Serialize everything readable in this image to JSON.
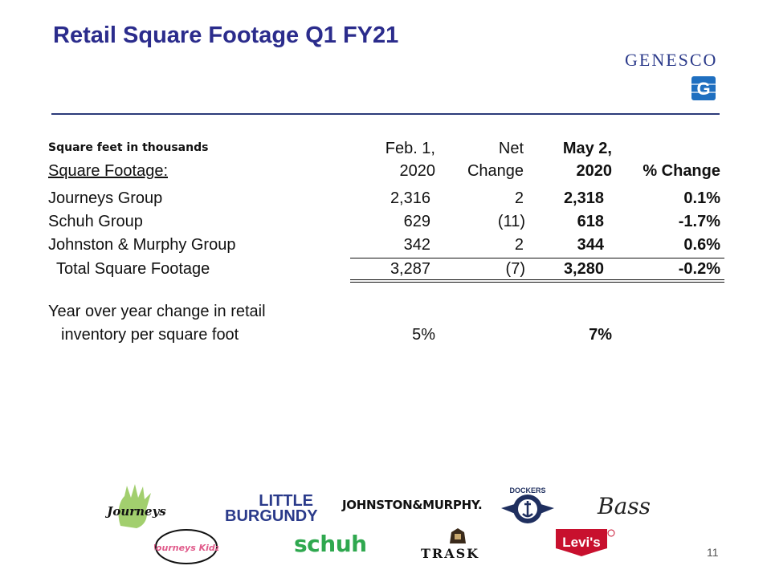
{
  "title": "Retail Square Footage Q1 FY21",
  "brand": {
    "name": "GENESCO",
    "mark": "G"
  },
  "note": "Square feet in thousands",
  "table": {
    "row_header_label": "Square Footage:",
    "columns": [
      {
        "line1": "Feb. 1,",
        "line2": "2020"
      },
      {
        "line1": "Net",
        "line2": "Change"
      },
      {
        "line1": "May 2,",
        "line2": "2020"
      },
      {
        "line1": "",
        "line2": "% Change"
      }
    ],
    "rows": [
      {
        "label": "Journeys Group",
        "feb": "2,316",
        "net": "2",
        "may": "2,318",
        "pct": "0.1%"
      },
      {
        "label": "Schuh Group",
        "feb": "629",
        "net": "(11)",
        "may": "618",
        "pct": "-1.7%"
      },
      {
        "label": "Johnston & Murphy Group",
        "feb": "342",
        "net": "2",
        "may": "344",
        "pct": "0.6%"
      },
      {
        "label": "Total Square Footage",
        "feb": "3,287",
        "net": "(7)",
        "may": "3,280",
        "pct": "-0.2%"
      }
    ],
    "yoy": {
      "label_line1": "Year over year change in retail",
      "label_line2": "inventory per square foot",
      "feb": "5%",
      "may": "7%"
    }
  },
  "logos": {
    "journeys": "Journeys",
    "journeys_kidz": "Journeys Kidz",
    "little_burgundy_1": "LITTLE",
    "little_burgundy_2": "BURGUNDY",
    "johnston_murphy": "JOHNSTON&MURPHY.",
    "dockers": "DOCKERS",
    "bass": "Bass",
    "schuh": "schuh",
    "trask": "TRASK",
    "levis": "Levi's"
  },
  "page_number": "11",
  "colors": {
    "title": "#2b2c8c",
    "brand": "#2b3a8a",
    "rule": "#2b3a7a",
    "schuh": "#2fa84f",
    "levis": "#c8102e",
    "burgundy": "#2a3a8a"
  }
}
